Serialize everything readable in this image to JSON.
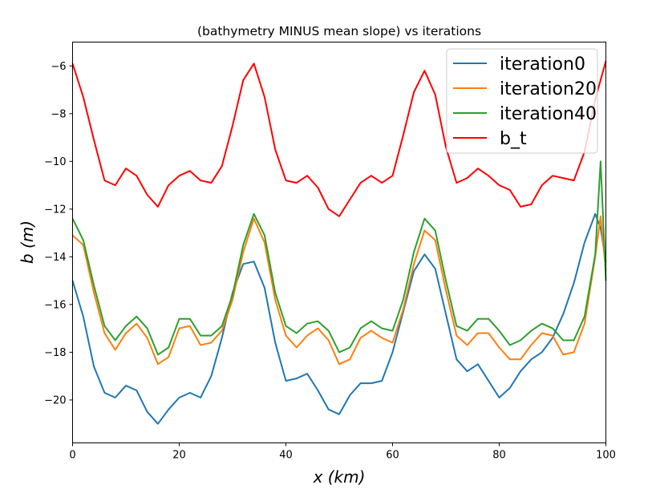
{
  "chart_data": {
    "type": "line",
    "title": "(bathymetry MINUS mean slope) vs iterations",
    "xlabel": "x (km)",
    "ylabel": "b (m)",
    "xlim": [
      0,
      100
    ],
    "ylim": [
      -21.8,
      -5.0
    ],
    "xticks": [
      0,
      20,
      40,
      60,
      80,
      100
    ],
    "yticks": [
      -20,
      -18,
      -16,
      -14,
      -12,
      -10,
      -8,
      -6
    ],
    "xtick_labels": [
      "0",
      "20",
      "40",
      "60",
      "80",
      "100"
    ],
    "ytick_labels": [
      "−20",
      "−18",
      "−16",
      "−14",
      "−12",
      "−10",
      "−8",
      "−6"
    ],
    "grid": false,
    "legend_position": "top-right",
    "series": [
      {
        "name": "iteration0",
        "color": "#1f77b4",
        "x": [
          0,
          2,
          4,
          6,
          8,
          10,
          12,
          14,
          16,
          18,
          20,
          22,
          24,
          26,
          28,
          30,
          32,
          34,
          36,
          38,
          40,
          42,
          44,
          46,
          48,
          50,
          52,
          54,
          56,
          58,
          60,
          62,
          64,
          66,
          68,
          70,
          72,
          74,
          76,
          78,
          80,
          82,
          84,
          86,
          88,
          90,
          92,
          94,
          96,
          98,
          99,
          100
        ],
        "y": [
          -15.0,
          -16.5,
          -18.6,
          -19.7,
          -19.9,
          -19.4,
          -19.6,
          -20.5,
          -21.0,
          -20.4,
          -19.9,
          -19.7,
          -19.9,
          -19.0,
          -17.4,
          -15.5,
          -14.3,
          -14.2,
          -15.3,
          -17.6,
          -19.2,
          -19.1,
          -18.9,
          -19.6,
          -20.4,
          -20.6,
          -19.8,
          -19.3,
          -19.3,
          -19.2,
          -18.0,
          -16.3,
          -14.6,
          -13.9,
          -14.5,
          -16.4,
          -18.3,
          -18.8,
          -18.5,
          -19.2,
          -19.9,
          -19.5,
          -18.8,
          -18.3,
          -18.0,
          -17.4,
          -16.4,
          -15.1,
          -13.4,
          -12.2,
          -12.8,
          -14.2
        ]
      },
      {
        "name": "iteration20",
        "color": "#ff7f0e",
        "x": [
          0,
          2,
          4,
          6,
          8,
          10,
          12,
          14,
          16,
          18,
          20,
          22,
          24,
          26,
          28,
          30,
          32,
          34,
          36,
          38,
          40,
          42,
          44,
          46,
          48,
          50,
          52,
          54,
          56,
          58,
          60,
          62,
          64,
          66,
          68,
          70,
          72,
          74,
          76,
          78,
          80,
          82,
          84,
          86,
          88,
          90,
          92,
          94,
          96,
          98,
          99,
          100
        ],
        "y": [
          -13.1,
          -13.5,
          -15.5,
          -17.2,
          -17.9,
          -17.2,
          -16.8,
          -17.4,
          -18.5,
          -18.2,
          -17.0,
          -16.9,
          -17.7,
          -17.6,
          -17.1,
          -15.8,
          -13.8,
          -12.4,
          -13.4,
          -15.8,
          -17.3,
          -17.8,
          -17.3,
          -17.0,
          -17.5,
          -18.5,
          -18.3,
          -17.4,
          -17.1,
          -17.4,
          -17.6,
          -16.2,
          -14.3,
          -12.9,
          -13.3,
          -15.4,
          -17.3,
          -17.7,
          -17.2,
          -17.2,
          -17.8,
          -18.3,
          -18.3,
          -17.7,
          -17.2,
          -17.3,
          -18.1,
          -18.0,
          -16.8,
          -14.0,
          -12.3,
          -14.6
        ]
      },
      {
        "name": "iteration40",
        "color": "#2ca02c",
        "x": [
          0,
          2,
          4,
          6,
          8,
          10,
          12,
          14,
          16,
          18,
          20,
          22,
          24,
          26,
          28,
          30,
          32,
          34,
          36,
          38,
          40,
          42,
          44,
          46,
          48,
          50,
          52,
          54,
          56,
          58,
          60,
          62,
          64,
          66,
          68,
          70,
          72,
          74,
          76,
          78,
          80,
          82,
          84,
          86,
          88,
          90,
          92,
          94,
          96,
          98,
          99,
          100
        ],
        "y": [
          -12.4,
          -13.3,
          -15.2,
          -16.9,
          -17.5,
          -16.9,
          -16.5,
          -17.0,
          -18.1,
          -17.8,
          -16.6,
          -16.6,
          -17.3,
          -17.3,
          -16.9,
          -15.6,
          -13.5,
          -12.2,
          -13.1,
          -15.5,
          -16.9,
          -17.2,
          -16.8,
          -16.7,
          -17.1,
          -18.0,
          -17.8,
          -17.0,
          -16.7,
          -17.0,
          -17.1,
          -15.8,
          -13.8,
          -12.4,
          -12.9,
          -15.0,
          -16.9,
          -17.1,
          -16.6,
          -16.6,
          -17.1,
          -17.7,
          -17.5,
          -17.1,
          -16.8,
          -17.0,
          -17.5,
          -17.5,
          -16.5,
          -13.9,
          -10.0,
          -15.0
        ]
      },
      {
        "name": "b_t",
        "color": "#ff0000",
        "x": [
          0,
          2,
          4,
          6,
          8,
          10,
          12,
          14,
          16,
          18,
          20,
          22,
          24,
          26,
          28,
          30,
          32,
          34,
          36,
          38,
          40,
          42,
          44,
          46,
          48,
          50,
          52,
          54,
          56,
          58,
          60,
          62,
          64,
          66,
          68,
          70,
          72,
          74,
          76,
          78,
          80,
          82,
          84,
          86,
          88,
          90,
          92,
          94,
          96,
          98,
          100
        ],
        "y": [
          -5.9,
          -7.3,
          -9.1,
          -10.8,
          -11.0,
          -10.3,
          -10.6,
          -11.4,
          -11.9,
          -11.0,
          -10.6,
          -10.4,
          -10.8,
          -10.9,
          -10.2,
          -8.5,
          -6.6,
          -5.9,
          -7.3,
          -9.5,
          -10.8,
          -10.9,
          -10.6,
          -11.1,
          -12.0,
          -12.3,
          -11.6,
          -10.9,
          -10.6,
          -10.9,
          -10.6,
          -8.9,
          -7.1,
          -6.2,
          -7.2,
          -9.4,
          -10.9,
          -10.7,
          -10.3,
          -10.6,
          -11.0,
          -11.2,
          -11.9,
          -11.8,
          -11.0,
          -10.6,
          -10.7,
          -10.8,
          -9.6,
          -7.4,
          -5.8
        ]
      }
    ]
  }
}
